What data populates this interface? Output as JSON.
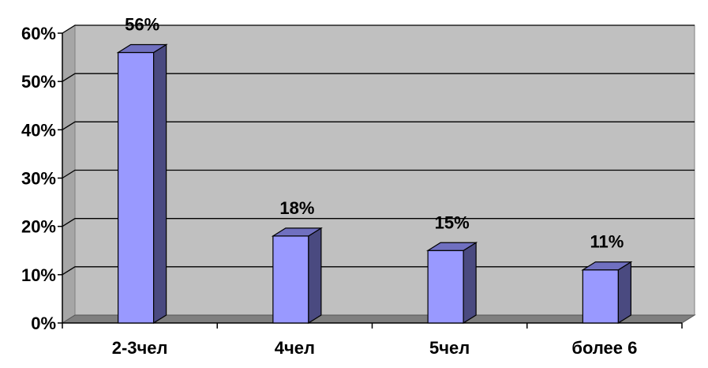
{
  "chart_data": {
    "type": "bar",
    "categories": [
      "2-3чел",
      "4чел",
      "5чел",
      "более 6"
    ],
    "values": [
      56,
      18,
      15,
      11
    ],
    "data_labels": [
      "56%",
      "18%",
      "15%",
      "11%"
    ],
    "ylim": [
      0,
      60
    ],
    "yticks": [
      0,
      10,
      20,
      30,
      40,
      50,
      60
    ],
    "ytick_labels": [
      "0%",
      "10%",
      "20%",
      "30%",
      "40%",
      "50%",
      "60%"
    ],
    "grid": true,
    "style": "3d",
    "colors": {
      "bar_front": "#9999ff",
      "bar_side": "#4a4a80",
      "bar_top": "#7070c0",
      "plot_back": "#c0c0c0",
      "plot_wall": "#a6a6a6",
      "floor": "#7f7f7f",
      "gridline": "#000000"
    }
  }
}
